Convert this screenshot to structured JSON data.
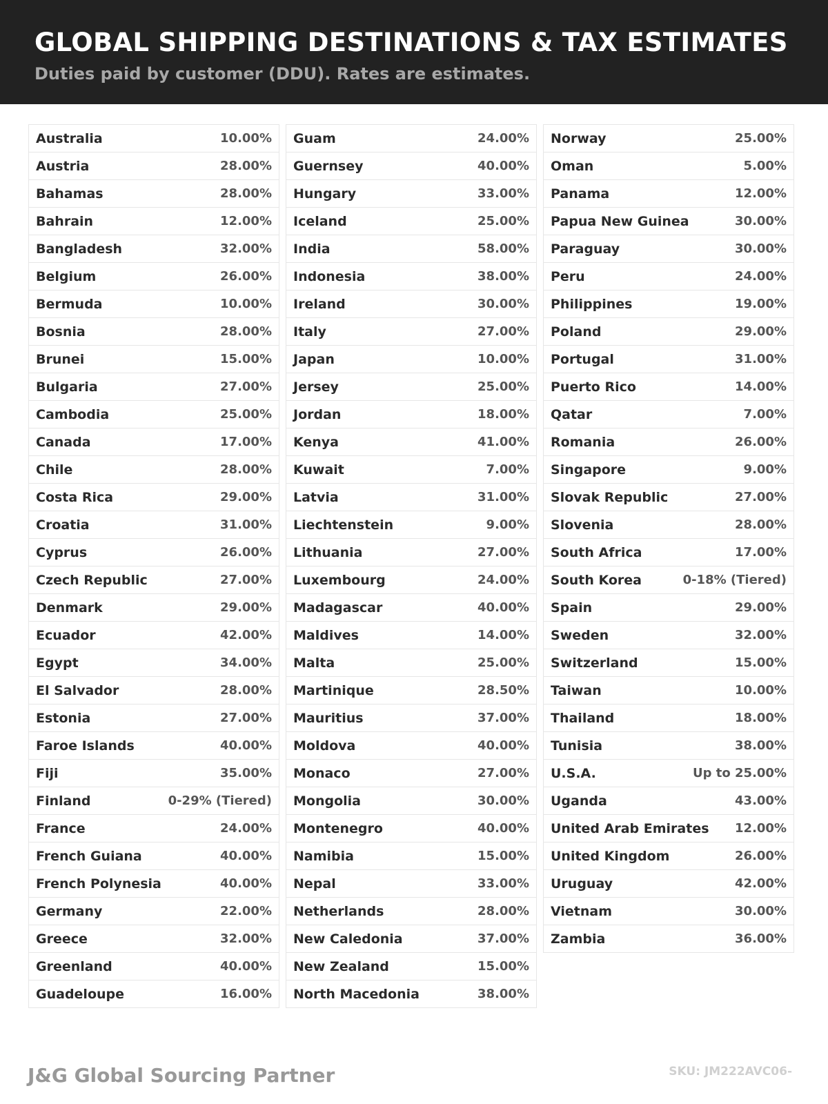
{
  "header": {
    "title": "GLOBAL SHIPPING DESTINATIONS & TAX ESTIMATES",
    "subtitle": "Duties paid by customer (DDU). Rates are estimates."
  },
  "columns": [
    [
      [
        "Australia",
        "10.00%"
      ],
      [
        "Austria",
        "28.00%"
      ],
      [
        "Bahamas",
        "28.00%"
      ],
      [
        "Bahrain",
        "12.00%"
      ],
      [
        "Bangladesh",
        "32.00%"
      ],
      [
        "Belgium",
        "26.00%"
      ],
      [
        "Bermuda",
        "10.00%"
      ],
      [
        "Bosnia",
        "28.00%"
      ],
      [
        "Brunei",
        "15.00%"
      ],
      [
        "Bulgaria",
        "27.00%"
      ],
      [
        "Cambodia",
        "25.00%"
      ],
      [
        "Canada",
        "17.00%"
      ],
      [
        "Chile",
        "28.00%"
      ],
      [
        "Costa Rica",
        "29.00%"
      ],
      [
        "Croatia",
        "31.00%"
      ],
      [
        "Cyprus",
        "26.00%"
      ],
      [
        "Czech Republic",
        "27.00%"
      ],
      [
        "Denmark",
        "29.00%"
      ],
      [
        "Ecuador",
        "42.00%"
      ],
      [
        "Egypt",
        "34.00%"
      ],
      [
        "El Salvador",
        "28.00%"
      ],
      [
        "Estonia",
        "27.00%"
      ],
      [
        "Faroe Islands",
        "40.00%"
      ],
      [
        "Fiji",
        "35.00%"
      ],
      [
        "Finland",
        "0-29% (Tiered)"
      ],
      [
        "France",
        "24.00%"
      ],
      [
        "French Guiana",
        "40.00%"
      ],
      [
        "French Polynesia",
        "40.00%"
      ],
      [
        "Germany",
        "22.00%"
      ],
      [
        "Greece",
        "32.00%"
      ],
      [
        "Greenland",
        "40.00%"
      ],
      [
        "Guadeloupe",
        "16.00%"
      ]
    ],
    [
      [
        "Guam",
        "24.00%"
      ],
      [
        "Guernsey",
        "40.00%"
      ],
      [
        "Hungary",
        "33.00%"
      ],
      [
        "Iceland",
        "25.00%"
      ],
      [
        "India",
        "58.00%"
      ],
      [
        "Indonesia",
        "38.00%"
      ],
      [
        "Ireland",
        "30.00%"
      ],
      [
        "Italy",
        "27.00%"
      ],
      [
        "Japan",
        "10.00%"
      ],
      [
        "Jersey",
        "25.00%"
      ],
      [
        "Jordan",
        "18.00%"
      ],
      [
        "Kenya",
        "41.00%"
      ],
      [
        "Kuwait",
        "7.00%"
      ],
      [
        "Latvia",
        "31.00%"
      ],
      [
        "Liechtenstein",
        "9.00%"
      ],
      [
        "Lithuania",
        "27.00%"
      ],
      [
        "Luxembourg",
        "24.00%"
      ],
      [
        "Madagascar",
        "40.00%"
      ],
      [
        "Maldives",
        "14.00%"
      ],
      [
        "Malta",
        "25.00%"
      ],
      [
        "Martinique",
        "28.50%"
      ],
      [
        "Mauritius",
        "37.00%"
      ],
      [
        "Moldova",
        "40.00%"
      ],
      [
        "Monaco",
        "27.00%"
      ],
      [
        "Mongolia",
        "30.00%"
      ],
      [
        "Montenegro",
        "40.00%"
      ],
      [
        "Namibia",
        "15.00%"
      ],
      [
        "Nepal",
        "33.00%"
      ],
      [
        "Netherlands",
        "28.00%"
      ],
      [
        "New Caledonia",
        "37.00%"
      ],
      [
        "New Zealand",
        "15.00%"
      ],
      [
        "North Macedonia",
        "38.00%"
      ]
    ],
    [
      [
        "Norway",
        "25.00%"
      ],
      [
        "Oman",
        "5.00%"
      ],
      [
        "Panama",
        "12.00%"
      ],
      [
        "Papua New Guinea",
        "30.00%"
      ],
      [
        "Paraguay",
        "30.00%"
      ],
      [
        "Peru",
        "24.00%"
      ],
      [
        "Philippines",
        "19.00%"
      ],
      [
        "Poland",
        "29.00%"
      ],
      [
        "Portugal",
        "31.00%"
      ],
      [
        "Puerto Rico",
        "14.00%"
      ],
      [
        "Qatar",
        "7.00%"
      ],
      [
        "Romania",
        "26.00%"
      ],
      [
        "Singapore",
        "9.00%"
      ],
      [
        "Slovak Republic",
        "27.00%"
      ],
      [
        "Slovenia",
        "28.00%"
      ],
      [
        "South Africa",
        "17.00%"
      ],
      [
        "South Korea",
        "0-18% (Tiered)"
      ],
      [
        "Spain",
        "29.00%"
      ],
      [
        "Sweden",
        "32.00%"
      ],
      [
        "Switzerland",
        "15.00%"
      ],
      [
        "Taiwan",
        "10.00%"
      ],
      [
        "Thailand",
        "18.00%"
      ],
      [
        "Tunisia",
        "38.00%"
      ],
      [
        "U.S.A.",
        "Up to 25.00%"
      ],
      [
        "Uganda",
        "43.00%"
      ],
      [
        "United Arab Emirates",
        "12.00%"
      ],
      [
        "United Kingdom",
        "26.00%"
      ],
      [
        "Uruguay",
        "42.00%"
      ],
      [
        "Vietnam",
        "30.00%"
      ],
      [
        "Zambia",
        "36.00%"
      ]
    ]
  ],
  "footer": {
    "brand": "J&G Global Sourcing Partner",
    "sku": "SKU: JM222AVC06-"
  }
}
